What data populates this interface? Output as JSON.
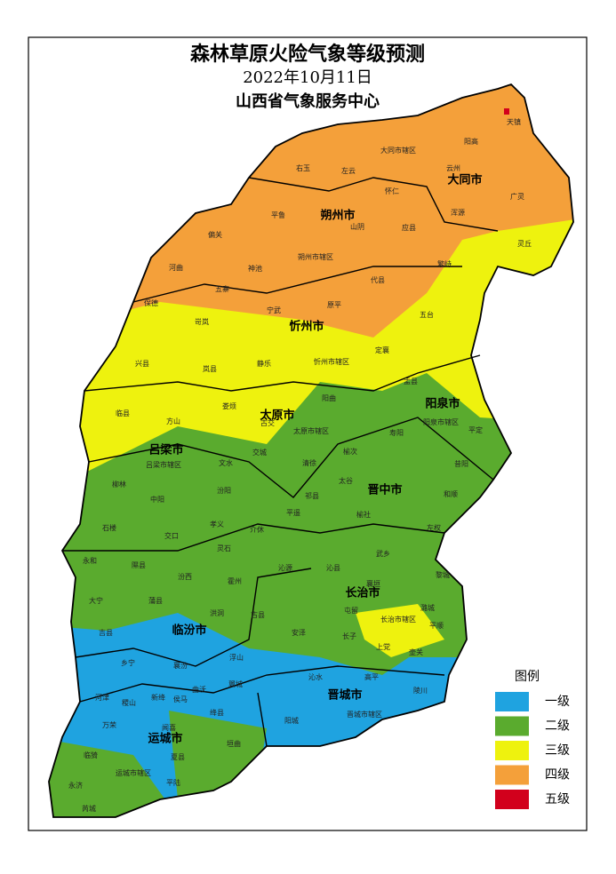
{
  "header": {
    "title": "森林草原火险气象等级预测",
    "date": "2022年10月11日",
    "organization": "山西省气象服务中心"
  },
  "legend": {
    "title": "图例",
    "items": [
      {
        "label": "一级",
        "color": "#1fa3e0"
      },
      {
        "label": "二级",
        "color": "#5aab2e"
      },
      {
        "label": "三级",
        "color": "#eef20e"
      },
      {
        "label": "四级",
        "color": "#f4a03a"
      },
      {
        "label": "五级",
        "color": "#d2001c"
      }
    ]
  },
  "cities": [
    "大同市",
    "朔州市",
    "忻州市",
    "吕梁市",
    "太原市",
    "阳泉市",
    "晋中市",
    "长治市",
    "临汾市",
    "晋城市",
    "运城市"
  ],
  "counties": [
    "天镇",
    "阳高",
    "大同市辖区",
    "左云",
    "右玉",
    "怀仁",
    "云州",
    "广灵",
    "浑源",
    "灵丘",
    "平鲁",
    "山阴",
    "应县",
    "偏关",
    "河曲",
    "神池",
    "朔州市辖区",
    "繁峙",
    "五寨",
    "代县",
    "保德",
    "岢岚",
    "宁武",
    "原平",
    "五台",
    "兴县",
    "岚县",
    "静乐",
    "忻州市辖区",
    "定襄",
    "盂县",
    "临县",
    "娄烦",
    "阳曲",
    "方山",
    "古交",
    "太原市辖区",
    "阳泉市辖区",
    "平定",
    "寿阳",
    "吕梁市辖区",
    "交城",
    "文水",
    "清徐",
    "榆次",
    "柳林",
    "汾阳",
    "太谷",
    "昔阳",
    "中阳",
    "祁县",
    "和顺",
    "孝义",
    "平遥",
    "介休",
    "榆社",
    "石楼",
    "交口",
    "左权",
    "灵石",
    "沁源",
    "沁县",
    "武乡",
    "永和",
    "隰县",
    "汾西",
    "霍州",
    "襄垣",
    "黎城",
    "大宁",
    "蒲县",
    "洪洞",
    "古县",
    "屯留",
    "潞城",
    "吉县",
    "安泽",
    "长治市辖区",
    "平顺",
    "乡宁",
    "浮山",
    "长子",
    "上党",
    "壶关",
    "襄汾",
    "翼城",
    "沁水",
    "高平",
    "陵川",
    "河津",
    "稷山",
    "新绛",
    "曲沃",
    "侯马",
    "绛县",
    "万荣",
    "闻喜",
    "阳城",
    "晋城市辖区",
    "临猗",
    "夏县",
    "垣曲",
    "运城市辖区",
    "永济",
    "平陆",
    "芮城"
  ]
}
